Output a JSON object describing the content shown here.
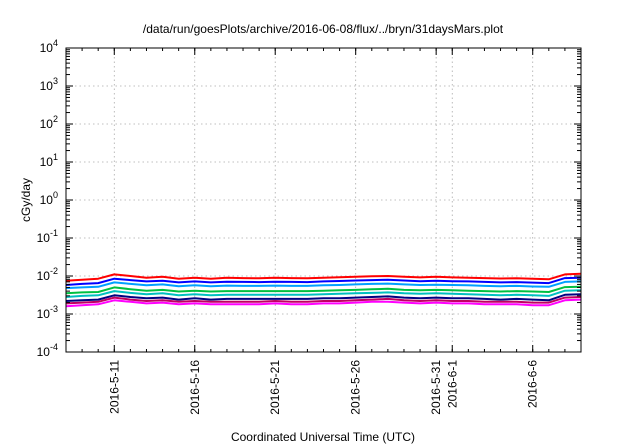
{
  "chart_data": {
    "type": "line",
    "title": "/data/run/goesPlots/archive/2016-06-08/flux/../bryn/31daysMars.plot",
    "xlabel": "Coordinated Universal Time (UTC)",
    "ylabel": "cGy/day",
    "y_scale": "log",
    "ylim": [
      0.0001,
      10000
    ],
    "xlim": [
      "2016-05-08",
      "2016-06-09"
    ],
    "grid": true,
    "legend": "none",
    "y_tick_labels": [
      {
        "base": "10",
        "exp": "-4",
        "value": 0.0001
      },
      {
        "base": "10",
        "exp": "-3",
        "value": 0.001
      },
      {
        "base": "10",
        "exp": "-2",
        "value": 0.01
      },
      {
        "base": "10",
        "exp": "-1",
        "value": 0.1
      },
      {
        "base": "10",
        "exp": "0",
        "value": 1
      },
      {
        "base": "10",
        "exp": "1",
        "value": 10
      },
      {
        "base": "10",
        "exp": "2",
        "value": 100
      },
      {
        "base": "10",
        "exp": "3",
        "value": 1000
      },
      {
        "base": "10",
        "exp": "4",
        "value": 10000
      }
    ],
    "x_ticks": [
      {
        "label": "2016-5-11",
        "date": "2016-05-11"
      },
      {
        "label": "2016-5-16",
        "date": "2016-05-16"
      },
      {
        "label": "2016-5-21",
        "date": "2016-05-21"
      },
      {
        "label": "2016-5-26",
        "date": "2016-05-26"
      },
      {
        "label": "2016-5-31",
        "date": "2016-05-31"
      },
      {
        "label": "2016-6-1",
        "date": "2016-06-01"
      },
      {
        "label": "2016-6-6",
        "date": "2016-06-06"
      }
    ],
    "x": [
      "2016-05-08",
      "2016-05-09",
      "2016-05-10",
      "2016-05-11",
      "2016-05-12",
      "2016-05-13",
      "2016-05-14",
      "2016-05-15",
      "2016-05-16",
      "2016-05-17",
      "2016-05-18",
      "2016-05-19",
      "2016-05-20",
      "2016-05-21",
      "2016-05-22",
      "2016-05-23",
      "2016-05-24",
      "2016-05-25",
      "2016-05-26",
      "2016-05-27",
      "2016-05-28",
      "2016-05-29",
      "2016-05-30",
      "2016-05-31",
      "2016-06-01",
      "2016-06-02",
      "2016-06-03",
      "2016-06-04",
      "2016-06-05",
      "2016-06-06",
      "2016-06-07",
      "2016-06-08",
      "2016-06-09"
    ],
    "series": [
      {
        "color": "#ff0000",
        "values": [
          0.0075,
          0.008,
          0.0085,
          0.011,
          0.01,
          0.009,
          0.0095,
          0.0085,
          0.009,
          0.0085,
          0.009,
          0.0088,
          0.0087,
          0.009,
          0.0088,
          0.0087,
          0.009,
          0.0093,
          0.0095,
          0.0098,
          0.01,
          0.0095,
          0.0092,
          0.0095,
          0.0092,
          0.009,
          0.0088,
          0.0086,
          0.0087,
          0.0085,
          0.0082,
          0.011,
          0.0115
        ]
      },
      {
        "color": "#0000ff",
        "values": [
          0.0058,
          0.0062,
          0.0065,
          0.0085,
          0.0078,
          0.0072,
          0.0075,
          0.0068,
          0.0072,
          0.0068,
          0.0071,
          0.007,
          0.0069,
          0.0071,
          0.007,
          0.0069,
          0.0072,
          0.0074,
          0.0076,
          0.0078,
          0.008,
          0.0076,
          0.0073,
          0.0075,
          0.0073,
          0.0072,
          0.007,
          0.0068,
          0.0069,
          0.0067,
          0.0065,
          0.0088,
          0.009
        ]
      },
      {
        "color": "#00a0ff",
        "values": [
          0.0048,
          0.005,
          0.0052,
          0.0068,
          0.0062,
          0.0057,
          0.006,
          0.0054,
          0.0057,
          0.0054,
          0.0056,
          0.0055,
          0.0055,
          0.0056,
          0.0055,
          0.0055,
          0.0057,
          0.0058,
          0.006,
          0.0062,
          0.0063,
          0.006,
          0.0058,
          0.0059,
          0.0058,
          0.0057,
          0.0055,
          0.0054,
          0.0055,
          0.0053,
          0.0052,
          0.007,
          0.0072
        ]
      },
      {
        "color": "#00c040",
        "values": [
          0.0035,
          0.0037,
          0.0038,
          0.005,
          0.0045,
          0.0041,
          0.0043,
          0.0039,
          0.0041,
          0.0039,
          0.004,
          0.004,
          0.004,
          0.004,
          0.004,
          0.004,
          0.0041,
          0.0042,
          0.0043,
          0.0045,
          0.0046,
          0.0043,
          0.0042,
          0.0043,
          0.0042,
          0.0041,
          0.004,
          0.0039,
          0.004,
          0.0039,
          0.0038,
          0.0051,
          0.0052
        ]
      },
      {
        "color": "#00c0c0",
        "values": [
          0.0028,
          0.003,
          0.0031,
          0.004,
          0.0036,
          0.0033,
          0.0035,
          0.0031,
          0.0033,
          0.0031,
          0.0032,
          0.0032,
          0.0032,
          0.0032,
          0.0032,
          0.0032,
          0.0033,
          0.0034,
          0.0035,
          0.0036,
          0.0037,
          0.0035,
          0.0034,
          0.0035,
          0.0034,
          0.0033,
          0.0032,
          0.0031,
          0.0032,
          0.0031,
          0.003,
          0.0041,
          0.0042
        ]
      },
      {
        "color": "#000080",
        "values": [
          0.0022,
          0.0023,
          0.0024,
          0.0031,
          0.0028,
          0.0026,
          0.0027,
          0.0024,
          0.0026,
          0.0024,
          0.0025,
          0.0025,
          0.0025,
          0.0025,
          0.0025,
          0.0025,
          0.0026,
          0.0026,
          0.0027,
          0.0028,
          0.0029,
          0.0027,
          0.0026,
          0.0027,
          0.0026,
          0.0026,
          0.0025,
          0.0024,
          0.0025,
          0.0024,
          0.0023,
          0.0032,
          0.0033
        ]
      },
      {
        "color": "#c00060",
        "values": [
          0.0019,
          0.002,
          0.0021,
          0.0027,
          0.0024,
          0.0022,
          0.0023,
          0.0021,
          0.0022,
          0.0021,
          0.0021,
          0.0021,
          0.0021,
          0.0022,
          0.0021,
          0.0021,
          0.0022,
          0.0022,
          0.0023,
          0.0024,
          0.0025,
          0.0023,
          0.0022,
          0.0023,
          0.0022,
          0.0022,
          0.0021,
          0.0021,
          0.0021,
          0.002,
          0.002,
          0.0027,
          0.0028
        ]
      },
      {
        "color": "#ff00ff",
        "values": [
          0.0016,
          0.0017,
          0.0018,
          0.0023,
          0.0021,
          0.0019,
          0.002,
          0.0018,
          0.0019,
          0.0018,
          0.0018,
          0.0018,
          0.0018,
          0.0019,
          0.0018,
          0.0018,
          0.0019,
          0.0019,
          0.002,
          0.0021,
          0.0021,
          0.002,
          0.0019,
          0.002,
          0.0019,
          0.0019,
          0.0018,
          0.0018,
          0.0018,
          0.0017,
          0.0017,
          0.0023,
          0.0024
        ]
      }
    ]
  }
}
